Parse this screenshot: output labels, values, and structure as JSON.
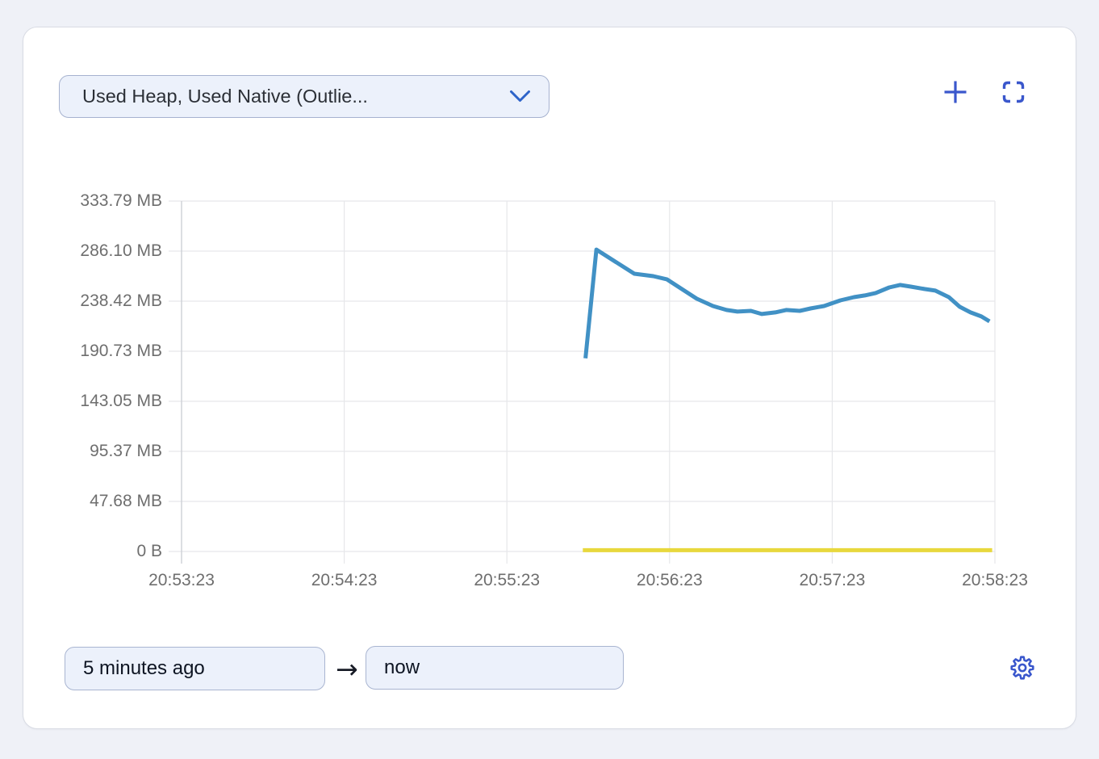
{
  "card": {
    "metric_dropdown": {
      "value": "Used Heap, Used Native (Outlie..."
    },
    "actions": {
      "add_icon": "plus-icon",
      "fullscreen_icon": "fullscreen-brackets-icon"
    },
    "time_range": {
      "from": "5 minutes ago",
      "to": "now",
      "arrow": "→",
      "settings_icon": "gear-icon"
    }
  },
  "chart_data": {
    "type": "line",
    "title": "",
    "unit": "MB",
    "grid": true,
    "legend": "none",
    "ylim_mb": [
      0,
      333.79
    ],
    "y_tick_labels": [
      "333.79 MB",
      "286.10 MB",
      "238.42 MB",
      "190.73 MB",
      "143.05 MB",
      "95.37 MB",
      "47.68 MB",
      "0 B"
    ],
    "x_tick_labels": [
      "20:53:23",
      "20:54:23",
      "20:55:23",
      "20:56:23",
      "20:57:23",
      "20:58:23"
    ],
    "x_window_seconds": 300,
    "x_tick_interval_seconds": 60,
    "colors": {
      "grid": "#e6e7ea",
      "axis": "#cdd0d6",
      "heap_line": "#4191c5",
      "native_line": "#e8d83d",
      "accent_blue": "#3a57cc"
    },
    "series": [
      {
        "name": "Used Heap",
        "color": "#4191c5",
        "points_t_seconds_mb": [
          [
            149,
            184.0
          ],
          [
            153,
            287.6
          ],
          [
            160,
            276.0
          ],
          [
            167,
            264.6
          ],
          [
            174,
            262.3
          ],
          [
            179,
            259.3
          ],
          [
            185,
            249.2
          ],
          [
            190,
            240.8
          ],
          [
            196,
            233.8
          ],
          [
            201,
            230.0
          ],
          [
            205,
            228.5
          ],
          [
            210,
            229.2
          ],
          [
            214,
            226.2
          ],
          [
            219,
            227.7
          ],
          [
            223,
            230.0
          ],
          [
            228,
            229.2
          ],
          [
            232,
            231.5
          ],
          [
            237,
            233.8
          ],
          [
            243,
            239.2
          ],
          [
            248,
            242.3
          ],
          [
            252,
            243.9
          ],
          [
            256,
            246.2
          ],
          [
            261,
            251.5
          ],
          [
            265,
            253.9
          ],
          [
            269,
            252.3
          ],
          [
            274,
            250.0
          ],
          [
            278,
            248.5
          ],
          [
            283,
            242.3
          ],
          [
            287,
            233.1
          ],
          [
            291,
            227.7
          ],
          [
            295,
            223.9
          ],
          [
            298,
            219.2
          ]
        ]
      },
      {
        "name": "Used Native",
        "color": "#e8d83d",
        "points_t_seconds_mb": [
          [
            148,
            1.2
          ],
          [
            299,
            1.2
          ]
        ]
      }
    ]
  }
}
